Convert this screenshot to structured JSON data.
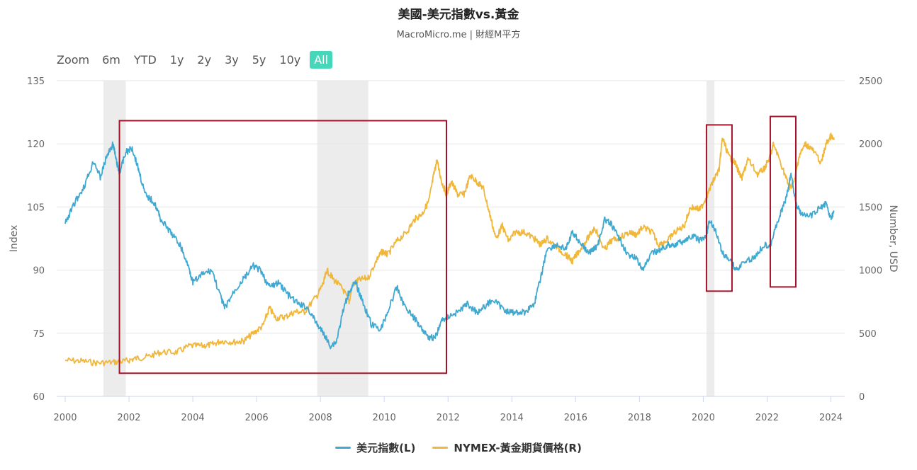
{
  "header": {
    "title": "美國-美元指數vs.黃金",
    "subtitle": "MacroMicro.me | 財經M平方"
  },
  "zoom": {
    "label": "Zoom",
    "buttons": [
      "6m",
      "YTD",
      "1y",
      "2y",
      "3y",
      "5y",
      "10y",
      "All"
    ],
    "active": "All"
  },
  "colors": {
    "usd": "#3fa9d1",
    "gold": "#f0b73c",
    "recession": "#ececec",
    "box": "#a4122a",
    "zoom_active": "#46d6b9"
  },
  "chart_data": {
    "type": "line",
    "x_ticks": [
      "2000",
      "2002",
      "2004",
      "2006",
      "2008",
      "2010",
      "2012",
      "2014",
      "2016",
      "2018",
      "2020",
      "2022",
      "2024"
    ],
    "xlim": [
      2000,
      2024.1
    ],
    "left_axis": {
      "label": "Index",
      "ticks": [
        "135",
        "120",
        "105",
        "90",
        "75",
        "60"
      ],
      "ylim": [
        60,
        135
      ]
    },
    "right_axis": {
      "label": "Number, USD",
      "ticks": [
        "2500",
        "2000",
        "1500",
        "1000",
        "500",
        "0"
      ],
      "ylim": [
        0,
        2500
      ]
    },
    "grid": true,
    "legend_position": "bottom-center",
    "recession_bands": [
      [
        2001.2,
        2001.9
      ],
      [
        2007.9,
        2009.5
      ],
      [
        2020.1,
        2020.35
      ]
    ],
    "highlight_boxes": [
      {
        "x": [
          2001.7,
          2011.95
        ],
        "y_left": [
          65.5,
          125.5
        ]
      },
      {
        "x": [
          2020.1,
          2020.9
        ],
        "y_left": [
          85,
          124.5
        ]
      },
      {
        "x": [
          2022.1,
          2022.9
        ],
        "y_left": [
          86,
          126.5
        ]
      }
    ],
    "series": [
      {
        "name": "美元指數(L)",
        "axis": "left",
        "points": [
          [
            2000.0,
            101
          ],
          [
            2000.3,
            106
          ],
          [
            2000.6,
            110
          ],
          [
            2000.9,
            116
          ],
          [
            2001.1,
            112
          ],
          [
            2001.3,
            117
          ],
          [
            2001.5,
            120
          ],
          [
            2001.6,
            116
          ],
          [
            2001.7,
            113
          ],
          [
            2001.9,
            118
          ],
          [
            2002.1,
            119
          ],
          [
            2002.3,
            114
          ],
          [
            2002.5,
            108
          ],
          [
            2002.8,
            106
          ],
          [
            2003.0,
            102
          ],
          [
            2003.3,
            99
          ],
          [
            2003.6,
            96
          ],
          [
            2003.9,
            90
          ],
          [
            2004.0,
            87
          ],
          [
            2004.3,
            89
          ],
          [
            2004.6,
            90
          ],
          [
            2004.9,
            83
          ],
          [
            2005.0,
            81
          ],
          [
            2005.3,
            85
          ],
          [
            2005.6,
            88
          ],
          [
            2005.9,
            91
          ],
          [
            2006.1,
            90
          ],
          [
            2006.4,
            86
          ],
          [
            2006.7,
            87
          ],
          [
            2007.0,
            84
          ],
          [
            2007.3,
            82
          ],
          [
            2007.6,
            81
          ],
          [
            2007.9,
            77
          ],
          [
            2008.1,
            75
          ],
          [
            2008.3,
            72
          ],
          [
            2008.5,
            73
          ],
          [
            2008.7,
            80
          ],
          [
            2008.9,
            85
          ],
          [
            2009.1,
            87
          ],
          [
            2009.3,
            83
          ],
          [
            2009.6,
            77
          ],
          [
            2009.9,
            76
          ],
          [
            2010.1,
            80
          ],
          [
            2010.4,
            86
          ],
          [
            2010.6,
            82
          ],
          [
            2010.9,
            79
          ],
          [
            2011.1,
            77
          ],
          [
            2011.4,
            74
          ],
          [
            2011.6,
            74
          ],
          [
            2011.8,
            78
          ],
          [
            2012.0,
            79
          ],
          [
            2012.3,
            80
          ],
          [
            2012.6,
            82
          ],
          [
            2012.9,
            80
          ],
          [
            2013.1,
            81
          ],
          [
            2013.4,
            83
          ],
          [
            2013.7,
            81
          ],
          [
            2013.9,
            80
          ],
          [
            2014.1,
            80
          ],
          [
            2014.4,
            80
          ],
          [
            2014.7,
            82
          ],
          [
            2014.9,
            88
          ],
          [
            2015.1,
            95
          ],
          [
            2015.4,
            96
          ],
          [
            2015.7,
            95
          ],
          [
            2015.9,
            99
          ],
          [
            2016.1,
            97
          ],
          [
            2016.4,
            94
          ],
          [
            2016.7,
            96
          ],
          [
            2016.9,
            102
          ],
          [
            2017.1,
            101
          ],
          [
            2017.4,
            97
          ],
          [
            2017.7,
            93
          ],
          [
            2017.9,
            93
          ],
          [
            2018.1,
            90
          ],
          [
            2018.4,
            94
          ],
          [
            2018.7,
            95
          ],
          [
            2018.9,
            96
          ],
          [
            2019.1,
            96
          ],
          [
            2019.4,
            97
          ],
          [
            2019.7,
            98
          ],
          [
            2019.9,
            97
          ],
          [
            2020.1,
            98
          ],
          [
            2020.2,
            102
          ],
          [
            2020.4,
            99
          ],
          [
            2020.6,
            94
          ],
          [
            2020.9,
            92
          ],
          [
            2021.0,
            90
          ],
          [
            2021.3,
            92
          ],
          [
            2021.6,
            93
          ],
          [
            2021.9,
            96
          ],
          [
            2022.1,
            96
          ],
          [
            2022.4,
            103
          ],
          [
            2022.6,
            107
          ],
          [
            2022.75,
            113
          ],
          [
            2022.9,
            106
          ],
          [
            2023.1,
            103
          ],
          [
            2023.4,
            103
          ],
          [
            2023.7,
            105
          ],
          [
            2023.85,
            106
          ],
          [
            2024.0,
            102
          ],
          [
            2024.1,
            104
          ]
        ]
      },
      {
        "name": "NYMEX-黃金期貨價格(R)",
        "axis": "right",
        "points": [
          [
            2000.0,
            285
          ],
          [
            2000.5,
            280
          ],
          [
            2001.0,
            265
          ],
          [
            2001.5,
            270
          ],
          [
            2001.9,
            280
          ],
          [
            2002.2,
            300
          ],
          [
            2002.6,
            315
          ],
          [
            2003.0,
            350
          ],
          [
            2003.5,
            350
          ],
          [
            2003.9,
            400
          ],
          [
            2004.3,
            400
          ],
          [
            2004.6,
            410
          ],
          [
            2004.9,
            440
          ],
          [
            2005.3,
            430
          ],
          [
            2005.6,
            440
          ],
          [
            2005.9,
            500
          ],
          [
            2006.2,
            560
          ],
          [
            2006.4,
            700
          ],
          [
            2006.6,
            620
          ],
          [
            2006.9,
            630
          ],
          [
            2007.2,
            670
          ],
          [
            2007.5,
            670
          ],
          [
            2007.9,
            800
          ],
          [
            2008.1,
            900
          ],
          [
            2008.2,
            1000
          ],
          [
            2008.4,
            930
          ],
          [
            2008.7,
            850
          ],
          [
            2008.9,
            750
          ],
          [
            2009.0,
            880
          ],
          [
            2009.2,
            920
          ],
          [
            2009.5,
            940
          ],
          [
            2009.8,
            1100
          ],
          [
            2009.95,
            1150
          ],
          [
            2010.1,
            1120
          ],
          [
            2010.4,
            1230
          ],
          [
            2010.7,
            1300
          ],
          [
            2010.95,
            1400
          ],
          [
            2011.2,
            1450
          ],
          [
            2011.4,
            1550
          ],
          [
            2011.55,
            1750
          ],
          [
            2011.65,
            1870
          ],
          [
            2011.8,
            1700
          ],
          [
            2011.95,
            1600
          ],
          [
            2012.1,
            1700
          ],
          [
            2012.3,
            1600
          ],
          [
            2012.5,
            1600
          ],
          [
            2012.7,
            1750
          ],
          [
            2012.9,
            1700
          ],
          [
            2013.1,
            1650
          ],
          [
            2013.3,
            1450
          ],
          [
            2013.5,
            1250
          ],
          [
            2013.7,
            1350
          ],
          [
            2013.9,
            1230
          ],
          [
            2014.1,
            1300
          ],
          [
            2014.4,
            1300
          ],
          [
            2014.7,
            1250
          ],
          [
            2014.9,
            1200
          ],
          [
            2015.1,
            1250
          ],
          [
            2015.4,
            1180
          ],
          [
            2015.7,
            1120
          ],
          [
            2015.9,
            1070
          ],
          [
            2016.1,
            1150
          ],
          [
            2016.4,
            1260
          ],
          [
            2016.6,
            1340
          ],
          [
            2016.9,
            1160
          ],
          [
            2017.1,
            1230
          ],
          [
            2017.4,
            1260
          ],
          [
            2017.7,
            1300
          ],
          [
            2017.9,
            1280
          ],
          [
            2018.1,
            1340
          ],
          [
            2018.4,
            1300
          ],
          [
            2018.6,
            1200
          ],
          [
            2018.9,
            1240
          ],
          [
            2019.1,
            1300
          ],
          [
            2019.4,
            1350
          ],
          [
            2019.6,
            1500
          ],
          [
            2019.9,
            1480
          ],
          [
            2020.1,
            1580
          ],
          [
            2020.3,
            1700
          ],
          [
            2020.5,
            1800
          ],
          [
            2020.6,
            2050
          ],
          [
            2020.8,
            1900
          ],
          [
            2021.0,
            1850
          ],
          [
            2021.2,
            1720
          ],
          [
            2021.4,
            1880
          ],
          [
            2021.7,
            1760
          ],
          [
            2021.9,
            1800
          ],
          [
            2022.1,
            1900
          ],
          [
            2022.2,
            2000
          ],
          [
            2022.5,
            1800
          ],
          [
            2022.7,
            1650
          ],
          [
            2022.85,
            1700
          ],
          [
            2023.0,
            1900
          ],
          [
            2023.2,
            2000
          ],
          [
            2023.4,
            1960
          ],
          [
            2023.7,
            1850
          ],
          [
            2023.85,
            2000
          ],
          [
            2024.0,
            2060
          ],
          [
            2024.1,
            2030
          ]
        ]
      }
    ]
  }
}
